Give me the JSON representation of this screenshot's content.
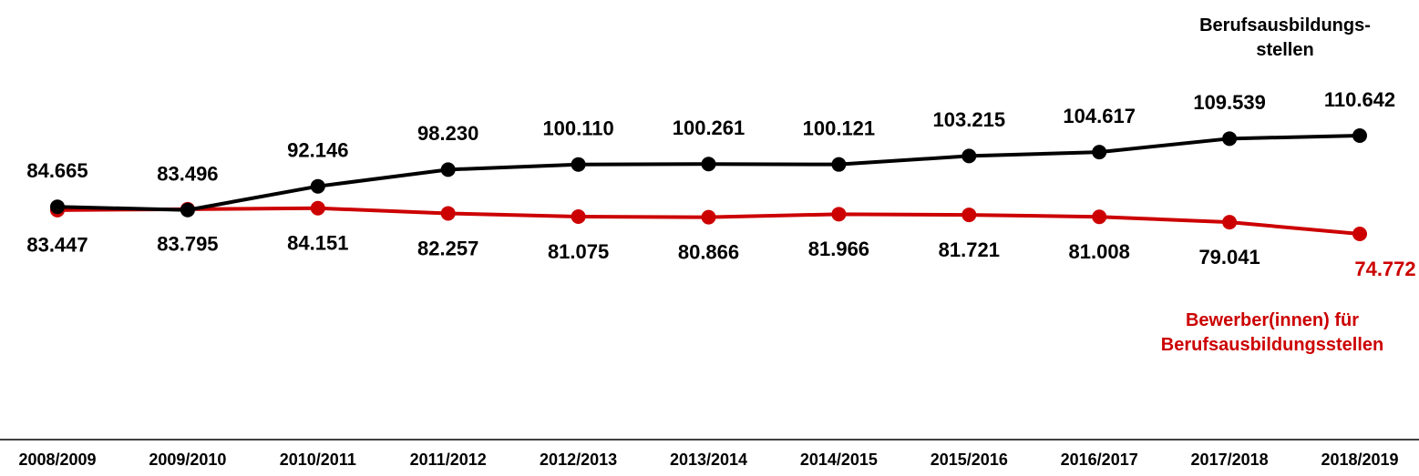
{
  "chart_data": {
    "type": "line",
    "categories": [
      "2008/2009",
      "2009/2010",
      "2010/2011",
      "2011/2012",
      "2012/2013",
      "2013/2014",
      "2014/2015",
      "2015/2016",
      "2016/2017",
      "2017/2018",
      "2018/2019"
    ],
    "series": [
      {
        "name": "Berufsausbildungs-\nstellen",
        "color": "#000000",
        "values": [
          84665,
          83496,
          92146,
          98230,
          100110,
          100261,
          100121,
          103215,
          104617,
          109539,
          110642
        ],
        "value_labels": [
          "84.665",
          "83.496",
          "92.146",
          "98.230",
          "100.110",
          "100.261",
          "100.121",
          "103.215",
          "104.617",
          "109.539",
          "110.642"
        ]
      },
      {
        "name": "Bewerber(innen) für\nBerufsausbildungsstellen",
        "color": "#cc0000",
        "values": [
          83447,
          83795,
          84151,
          82257,
          81075,
          80866,
          81966,
          81721,
          81008,
          79041,
          74772
        ],
        "value_labels": [
          "83.447",
          "83.795",
          "84.151",
          "82.257",
          "81.075",
          "80.866",
          "81.966",
          "81.721",
          "81.008",
          "79.041",
          "74.772"
        ]
      }
    ]
  }
}
